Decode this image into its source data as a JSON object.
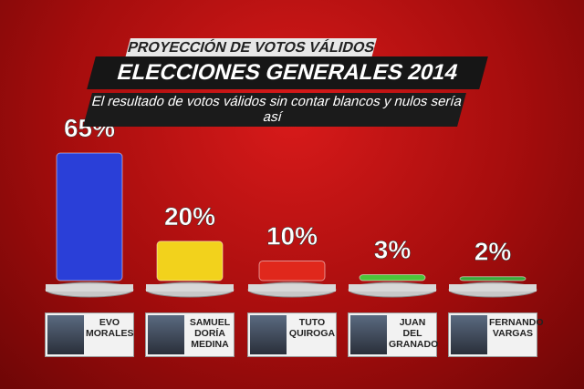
{
  "chart_data": {
    "type": "bar",
    "supertitle": "PROYECCIÓN DE VOTOS VÁLIDOS",
    "title": "ELECCIONES GENERALES 2014",
    "subtitle": "El resultado de votos válidos sin contar blancos y nulos sería así",
    "categories": [
      "EVO MORALES",
      "SAMUEL DORÍA MEDINA",
      "TUTO QUIROGA",
      "JUAN DEL GRANADO",
      "FERNANDO VARGAS"
    ],
    "values": [
      65,
      20,
      10,
      3,
      2
    ],
    "value_labels": [
      "65%",
      "20%",
      "10%",
      "3%",
      "2%"
    ],
    "colors": [
      "#2a3fd8",
      "#f2d21c",
      "#e0281c",
      "#4cc43a",
      "#3aa83a"
    ]
  }
}
